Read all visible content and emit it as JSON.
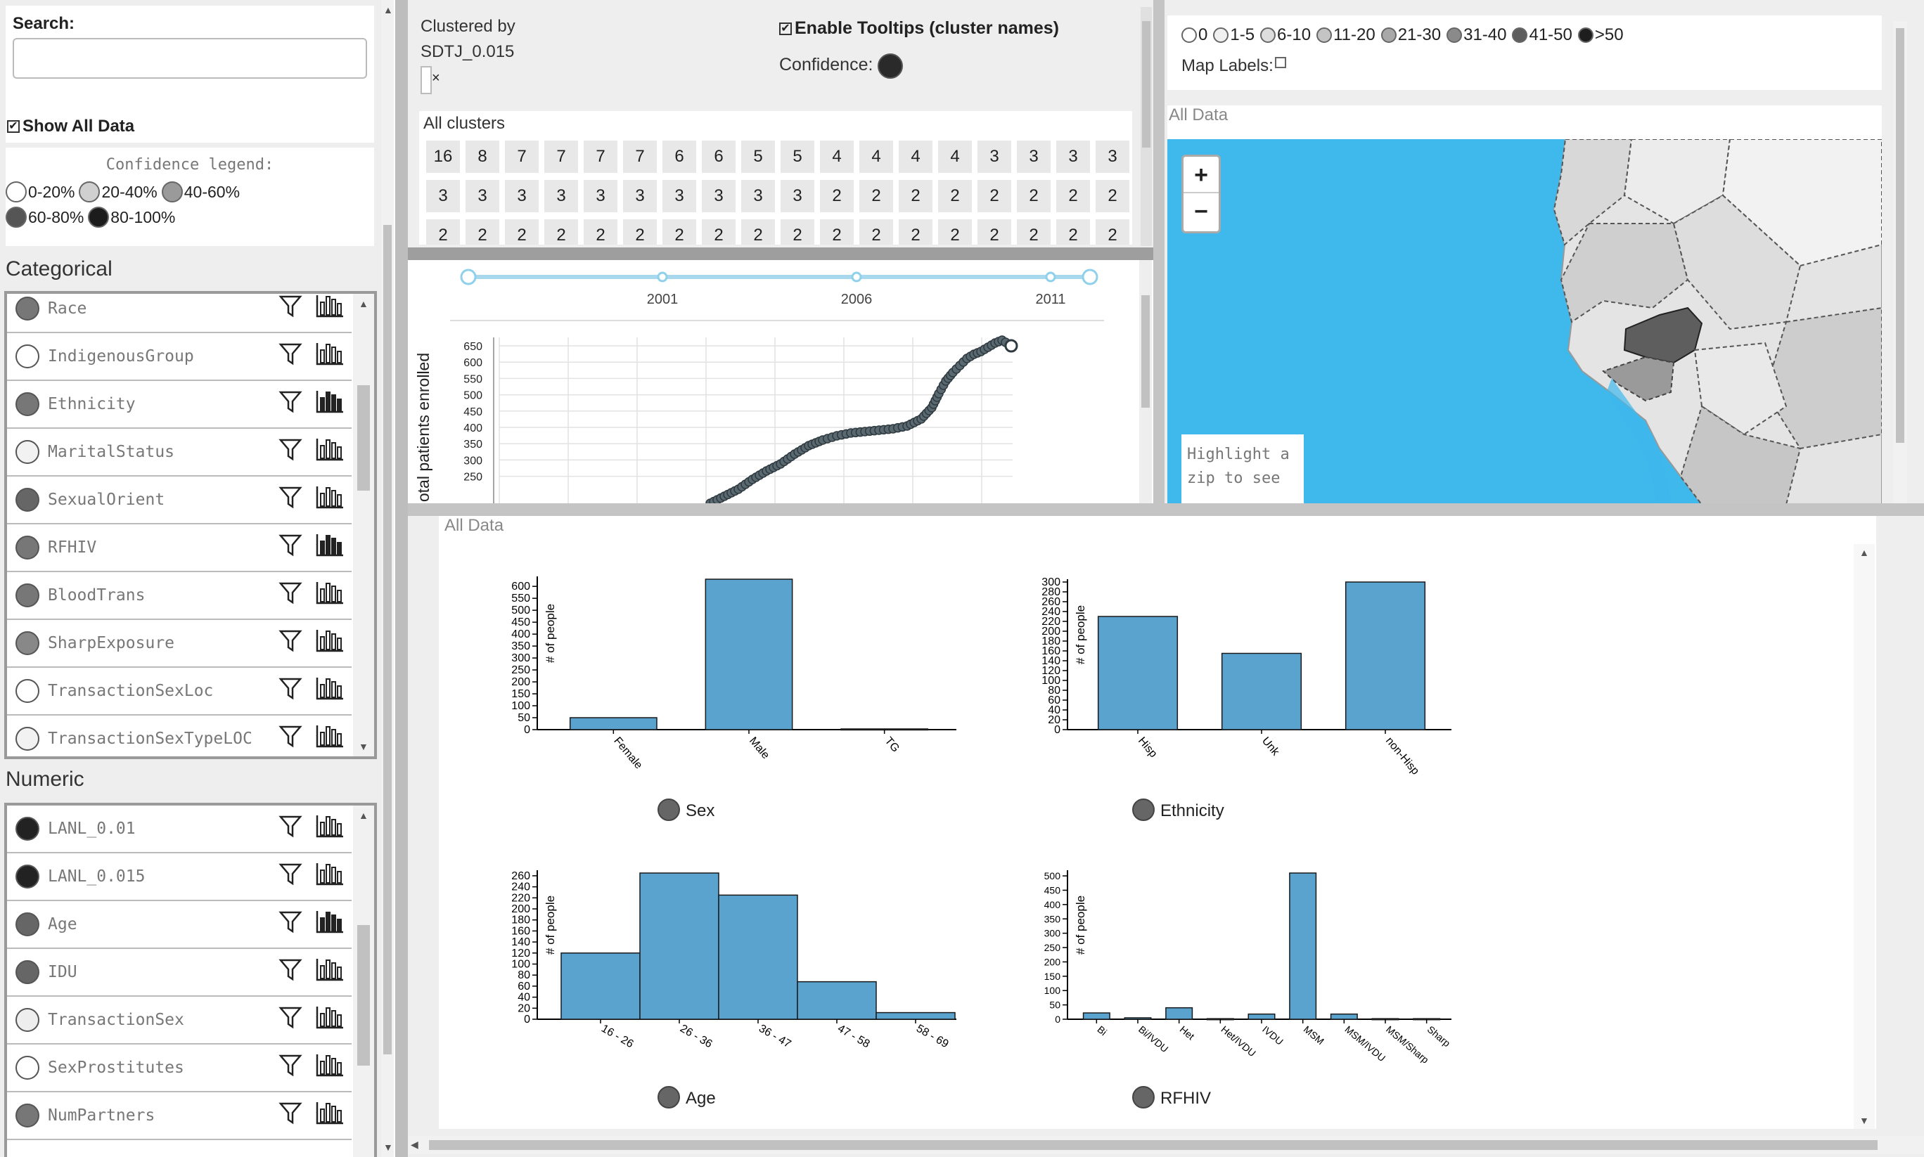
{
  "left": {
    "search_label": "Search:",
    "search_value": "",
    "show_all_label": "Show All Data",
    "confidence_legend_title": "Confidence legend:",
    "confidence_legend": [
      {
        "label": "0-20%",
        "color": "#ffffff"
      },
      {
        "label": "20-40%",
        "color": "#d0d0d0"
      },
      {
        "label": "40-60%",
        "color": "#9a9a9a"
      },
      {
        "label": "60-80%",
        "color": "#555555"
      },
      {
        "label": "80-100%",
        "color": "#1c1c1c"
      }
    ],
    "categorical_title": "Categorical",
    "categorical": [
      {
        "name": "Race",
        "color": "#777777",
        "hist_active": false
      },
      {
        "name": "IndigenousGroup",
        "color": "#ffffff",
        "hist_active": false
      },
      {
        "name": "Ethnicity",
        "color": "#777777",
        "hist_active": true
      },
      {
        "name": "MaritalStatus",
        "color": "#f2f2f2",
        "hist_active": false
      },
      {
        "name": "SexualOrient",
        "color": "#666666",
        "hist_active": false
      },
      {
        "name": "RFHIV",
        "color": "#777777",
        "hist_active": true
      },
      {
        "name": "BloodTrans",
        "color": "#777777",
        "hist_active": false
      },
      {
        "name": "SharpExposure",
        "color": "#888888",
        "hist_active": false
      },
      {
        "name": "TransactionSexLoc",
        "color": "#ffffff",
        "hist_active": false
      },
      {
        "name": "TransactionSexTypeLOC",
        "color": "#f2f2f2",
        "hist_active": false
      }
    ],
    "numeric_title": "Numeric",
    "numeric": [
      {
        "name": "LANL_0.01",
        "color": "#222222",
        "hist_active": false
      },
      {
        "name": "LANL_0.015",
        "color": "#222222",
        "hist_active": false
      },
      {
        "name": "Age",
        "color": "#666666",
        "hist_active": true
      },
      {
        "name": "IDU",
        "color": "#666666",
        "hist_active": false
      },
      {
        "name": "TransactionSex",
        "color": "#eeeeee",
        "hist_active": false
      },
      {
        "name": "SexProstitutes",
        "color": "#ffffff",
        "hist_active": false
      },
      {
        "name": "NumPartners",
        "color": "#777777",
        "hist_active": false
      }
    ]
  },
  "clusters": {
    "clustered_by_label": "Clustered by",
    "clustered_by_value": "SDTJ_0.015",
    "close_glyph": "×",
    "tooltips_label": "Enable Tooltips (cluster names)",
    "confidence_label": "Confidence:",
    "all_clusters_label": "All clusters",
    "rows": [
      [
        "16",
        "8",
        "7",
        "7",
        "7",
        "7",
        "6",
        "6",
        "5",
        "5",
        "4",
        "4",
        "4",
        "4",
        "3",
        "3",
        "3",
        "3"
      ],
      [
        "3",
        "3",
        "3",
        "3",
        "3",
        "3",
        "3",
        "3",
        "3",
        "3",
        "2",
        "2",
        "2",
        "2",
        "2",
        "2",
        "2",
        "2"
      ],
      [
        "2",
        "2",
        "2",
        "2",
        "2",
        "2",
        "2",
        "2",
        "2",
        "2",
        "2",
        "2",
        "2",
        "2",
        "2",
        "2",
        "2",
        "2"
      ]
    ]
  },
  "timeline": {
    "years": [
      "2001",
      "2006",
      "2011"
    ],
    "ylabel": "otal patients enrolled",
    "yticks": [
      "650",
      "600",
      "550",
      "500",
      "450",
      "400",
      "350",
      "300",
      "250"
    ]
  },
  "map": {
    "legend": [
      {
        "label": "0",
        "color": "#ffffff"
      },
      {
        "label": "1-5",
        "color": "#f0f0f0"
      },
      {
        "label": "6-10",
        "color": "#dddddd"
      },
      {
        "label": "11-20",
        "color": "#c4c4c4"
      },
      {
        "label": "21-30",
        "color": "#a8a8a8"
      },
      {
        "label": "31-40",
        "color": "#8a8a8a"
      },
      {
        "label": "41-50",
        "color": "#5e5e5e"
      },
      {
        "label": ">50",
        "color": "#1e1e1e"
      }
    ],
    "map_labels_label": "Map Labels:",
    "section_label": "All Data",
    "zoom_in": "+",
    "zoom_out": "−",
    "info_text_1": "Highlight a",
    "info_text_2": "zip to see"
  },
  "charts_section_label": "All Data",
  "chart_data": [
    {
      "type": "bar",
      "title": "Sex",
      "ylabel": "# of people",
      "categories": [
        "Female",
        "Male",
        "TG"
      ],
      "values": [
        50,
        630,
        3
      ],
      "yticks": [
        0,
        50,
        100,
        150,
        200,
        250,
        300,
        350,
        400,
        450,
        500,
        550,
        600
      ],
      "ylim": [
        0,
        630
      ]
    },
    {
      "type": "bar",
      "title": "Ethnicity",
      "ylabel": "# of people",
      "categories": [
        "Hisp",
        "Unk",
        "non-Hisp"
      ],
      "values": [
        230,
        155,
        300
      ],
      "yticks": [
        0,
        20,
        40,
        60,
        80,
        100,
        120,
        140,
        160,
        180,
        200,
        220,
        240,
        260,
        280,
        300
      ],
      "ylim": [
        0,
        300
      ]
    },
    {
      "type": "bar",
      "title": "Age",
      "ylabel": "# of people",
      "categories": [
        "16 - 26",
        "26 - 36",
        "36 - 47",
        "47 - 58",
        "58 - 69"
      ],
      "values": [
        120,
        265,
        225,
        68,
        12
      ],
      "yticks": [
        0,
        20,
        40,
        60,
        80,
        100,
        120,
        140,
        160,
        180,
        200,
        220,
        240,
        260
      ],
      "ylim": [
        0,
        265
      ]
    },
    {
      "type": "bar",
      "title": "RFHIV",
      "ylabel": "# of people",
      "categories": [
        "Bi",
        "Bi/IVDU",
        "Het",
        "Het/IVDU",
        "IVDU",
        "MSM",
        "MSM/IVDU",
        "MSM/Sharp",
        "Sharp"
      ],
      "values": [
        22,
        5,
        40,
        2,
        18,
        510,
        18,
        2,
        2
      ],
      "yticks": [
        0,
        50,
        100,
        150,
        200,
        250,
        300,
        350,
        400,
        450,
        500
      ],
      "ylim": [
        0,
        510
      ]
    }
  ]
}
